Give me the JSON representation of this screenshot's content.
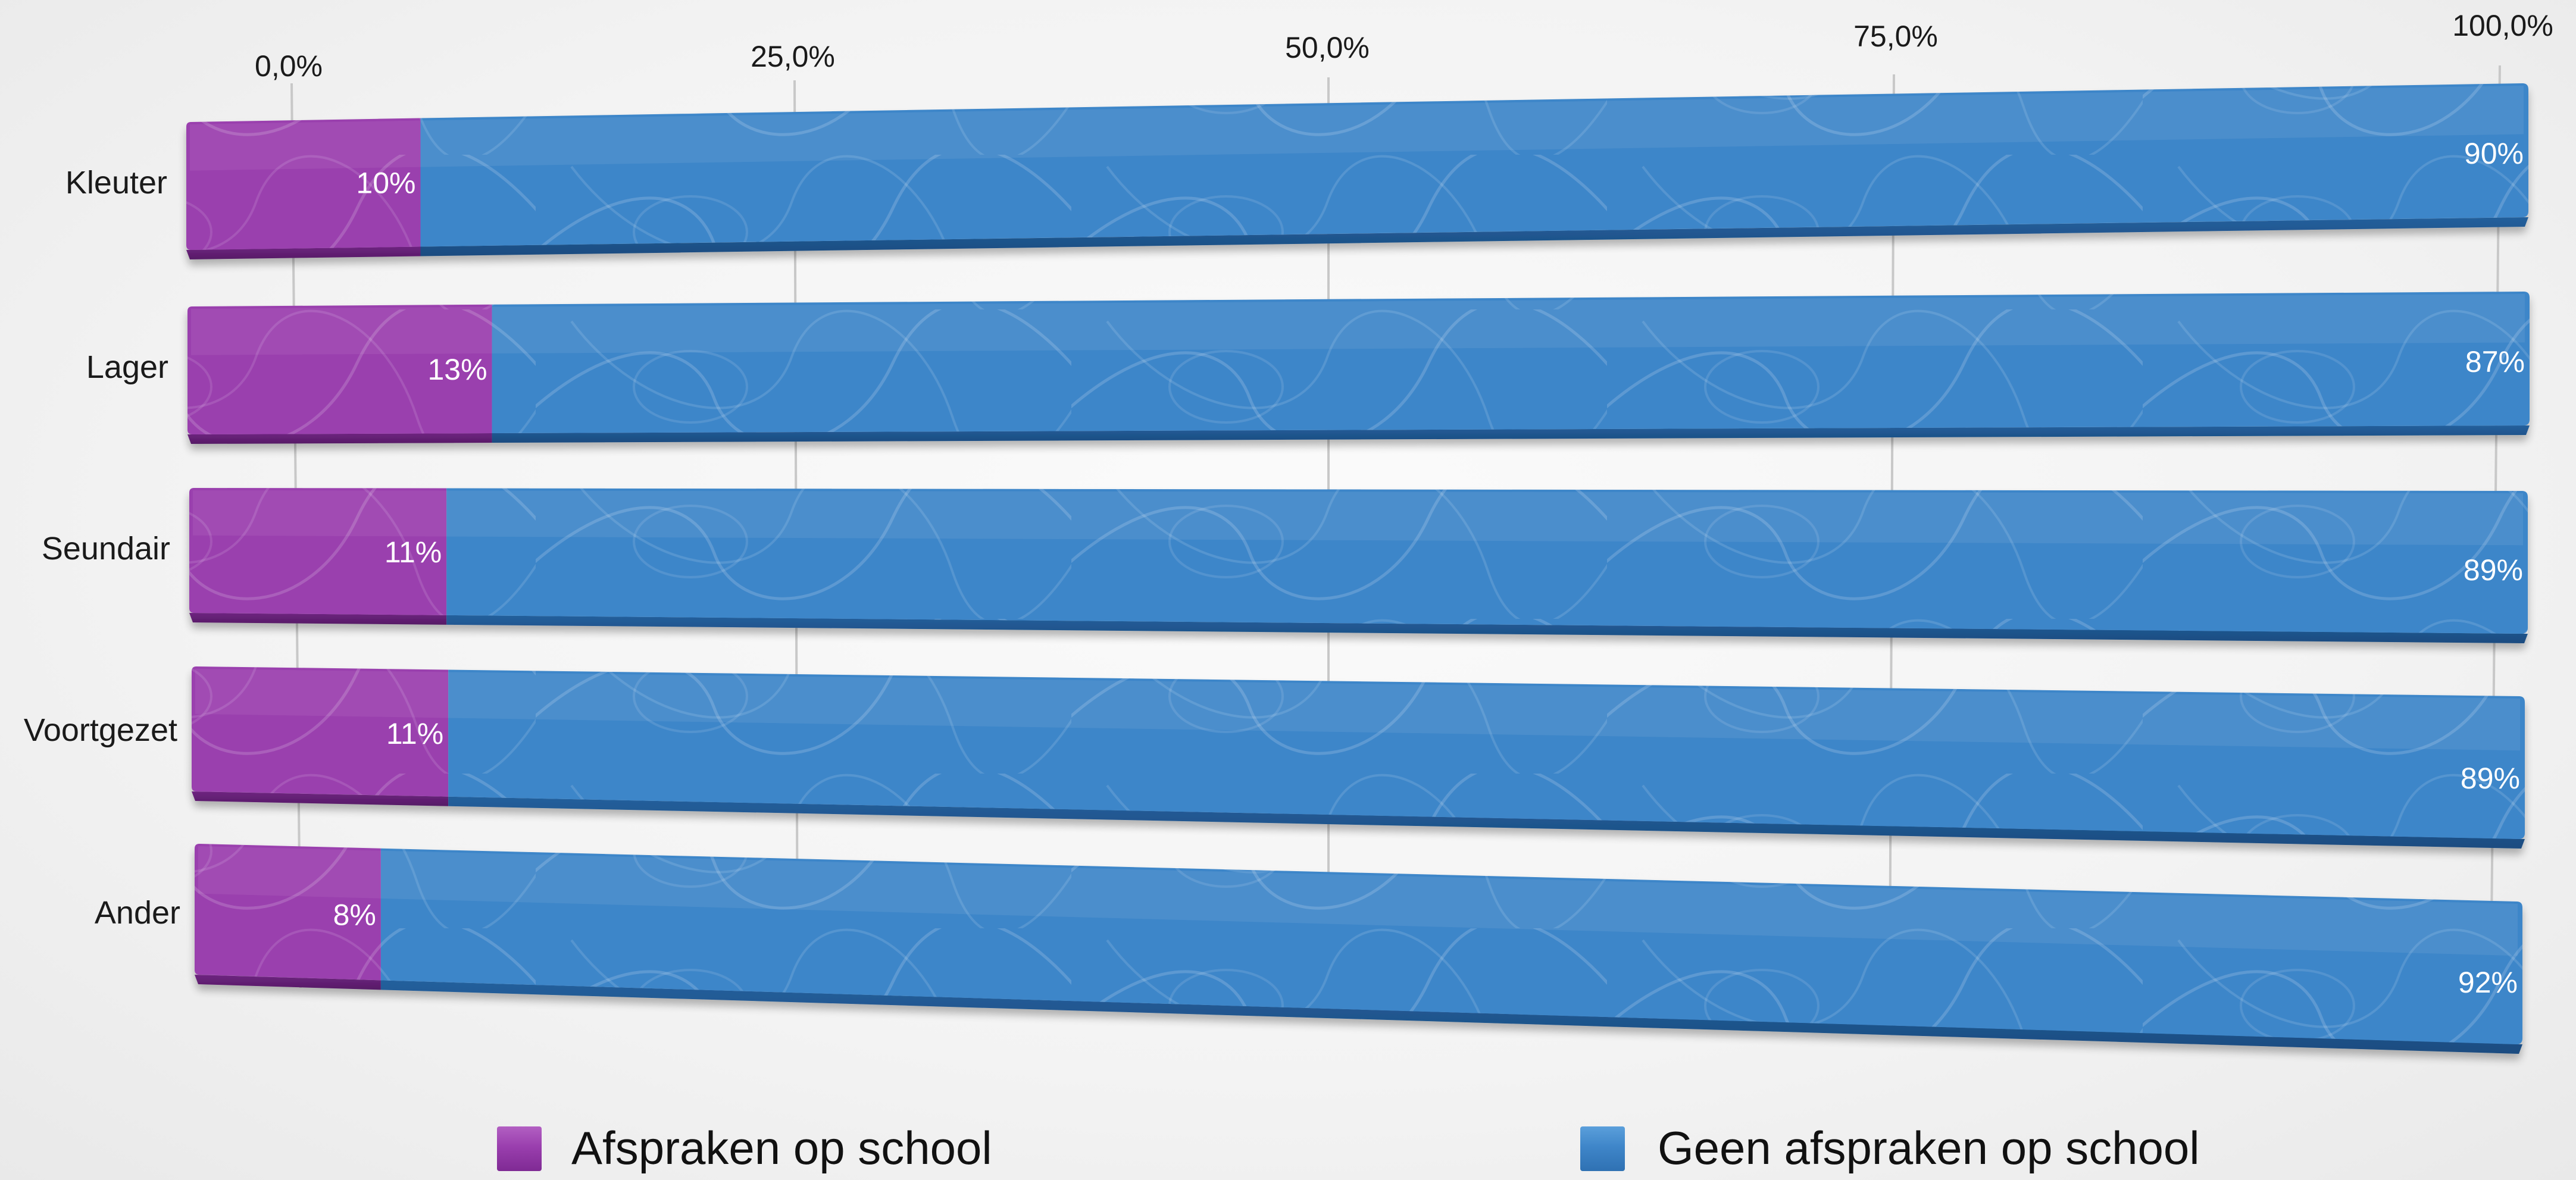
{
  "chart_data": {
    "type": "bar",
    "orientation": "horizontal",
    "stacked": true,
    "percent": true,
    "title": "",
    "xlabel": "",
    "ylabel": "",
    "xlim": [
      0,
      100
    ],
    "x_ticks": [
      0,
      25,
      50,
      75,
      100
    ],
    "x_tick_labels": [
      "0,0%",
      "25,0%",
      "50,0%",
      "75,0%",
      "100,0%"
    ],
    "x_axis_position": "top",
    "grid": true,
    "legend_position": "bottom",
    "categories": [
      "Kleuter",
      "Lager",
      "Seundair",
      "Voortgezet",
      "Ander"
    ],
    "series": [
      {
        "name": "Afspraken op school",
        "color": "#9a3fae",
        "values": [
          10,
          13,
          11,
          11,
          8
        ],
        "labels": [
          "10%",
          "13%",
          "11%",
          "11%",
          "8%"
        ]
      },
      {
        "name": "Geen afspraken op school",
        "color": "#3e86c9",
        "values": [
          90,
          87,
          89,
          89,
          92
        ],
        "labels": [
          "90%",
          "87%",
          "89%",
          "89%",
          "92%"
        ]
      }
    ]
  }
}
